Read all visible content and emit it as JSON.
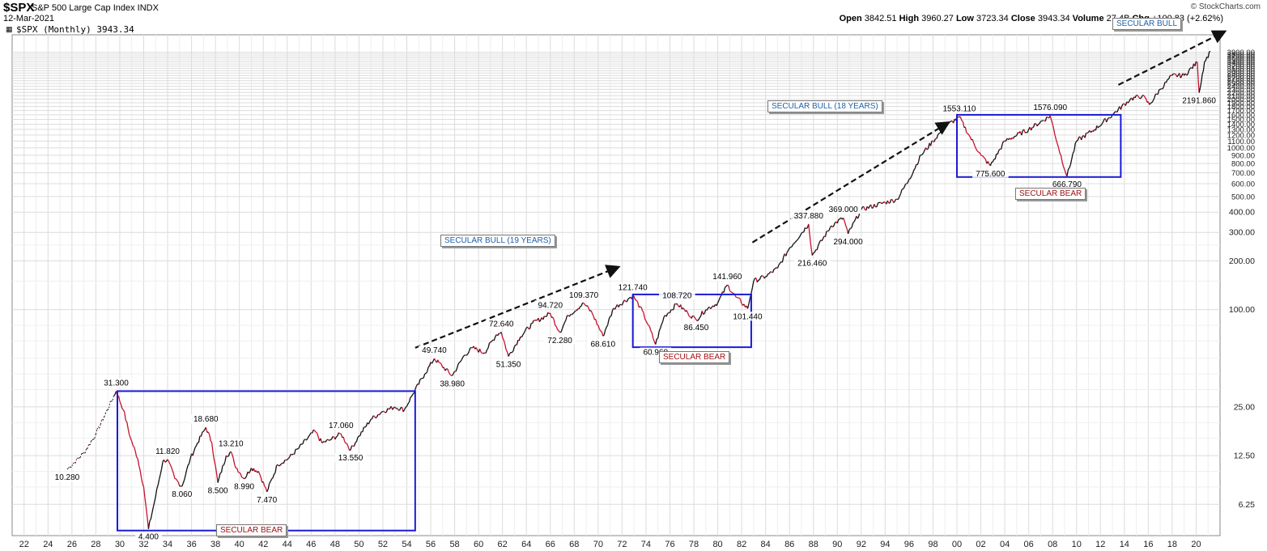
{
  "header": {
    "symbol": "$SPX",
    "name": "S&P 500 Large Cap Index INDX",
    "date": "12-Mar-2021",
    "legend": "$SPX (Monthly) 3943.34",
    "brand": "© StockCharts.com",
    "ohlc": [
      {
        "label": "Open",
        "value": "3842.51"
      },
      {
        "label": "High",
        "value": "3960.27"
      },
      {
        "label": "Low",
        "value": "3723.34"
      },
      {
        "label": "Close",
        "value": "3943.34"
      },
      {
        "label": "Volume",
        "value": "27.4B"
      },
      {
        "label": "Chg",
        "value": "+100.83 (+2.62%)"
      }
    ]
  },
  "chart_data": {
    "type": "line",
    "title": "$SPX (Monthly)",
    "y_scale": "log",
    "ylim": [
      4,
      5000
    ],
    "xlim": [
      1921,
      2022
    ],
    "grid": true,
    "y_ticks": [
      "6.25",
      "12.50",
      "25.00",
      "100.00",
      "200.00",
      "300.00",
      "400.00",
      "500.00",
      "600.00",
      "700.00",
      "800.00",
      "900.00",
      "1000.00",
      "1100.00",
      "1200.00",
      "1300.00",
      "1400.00",
      "1500.00",
      "1600.00",
      "1700.00",
      "1800.00",
      "1900.00",
      "2000.00",
      "2100.00",
      "2200.00",
      "2300.00",
      "2400.00",
      "2500.00",
      "2600.00",
      "2700.00",
      "2800.00",
      "2900.00",
      "3000.00",
      "3100.00",
      "3200.00",
      "3300.00",
      "3400.00",
      "3500.00",
      "3600.00",
      "3700.00",
      "3800.00",
      "3900.00"
    ],
    "x_ticks": [
      "22",
      "24",
      "26",
      "28",
      "30",
      "32",
      "34",
      "36",
      "38",
      "40",
      "42",
      "44",
      "46",
      "48",
      "50",
      "52",
      "54",
      "56",
      "58",
      "60",
      "62",
      "64",
      "66",
      "68",
      "70",
      "72",
      "74",
      "76",
      "78",
      "80",
      "82",
      "84",
      "86",
      "88",
      "90",
      "92",
      "94",
      "96",
      "98",
      "00",
      "02",
      "04",
      "06",
      "08",
      "10",
      "12",
      "14",
      "16",
      "18",
      "20"
    ],
    "series": [
      {
        "points": [
          [
            1925.6,
            10.28
          ],
          [
            1927,
            13
          ],
          [
            1928,
            17
          ],
          [
            1929.7,
            31.3
          ],
          [
            1930.3,
            24
          ],
          [
            1930.9,
            16
          ],
          [
            1931.5,
            12
          ],
          [
            1932.0,
            8
          ],
          [
            1932.4,
            4.4
          ],
          [
            1933.0,
            7
          ],
          [
            1933.6,
            11.5
          ],
          [
            1934.0,
            11.82
          ],
          [
            1934.6,
            9
          ],
          [
            1935.2,
            8.06
          ],
          [
            1935.9,
            12
          ],
          [
            1936.5,
            15
          ],
          [
            1937.2,
            18.68
          ],
          [
            1937.7,
            15
          ],
          [
            1938.2,
            8.5
          ],
          [
            1938.9,
            12.5
          ],
          [
            1939.3,
            13.21
          ],
          [
            1939.6,
            11
          ],
          [
            1940.4,
            8.99
          ],
          [
            1941.0,
            10.5
          ],
          [
            1941.6,
            10
          ],
          [
            1942.3,
            7.47
          ],
          [
            1943.2,
            11
          ],
          [
            1944.1,
            12
          ],
          [
            1945.0,
            14
          ],
          [
            1946.3,
            17.8
          ],
          [
            1946.9,
            15
          ],
          [
            1947.5,
            15.5
          ],
          [
            1948.5,
            17.06
          ],
          [
            1949.3,
            13.55
          ],
          [
            1950.0,
            16.5
          ],
          [
            1951.0,
            21
          ],
          [
            1952.0,
            23.5
          ],
          [
            1953.0,
            25
          ],
          [
            1953.8,
            24
          ],
          [
            1954.5,
            30
          ],
          [
            1955.5,
            40
          ],
          [
            1956.3,
            49.74
          ],
          [
            1957.8,
            38.98
          ],
          [
            1958.8,
            52
          ],
          [
            1959.5,
            58
          ],
          [
            1960.5,
            54
          ],
          [
            1961.5,
            70
          ],
          [
            1961.9,
            72.64
          ],
          [
            1962.5,
            51.35
          ],
          [
            1963.5,
            68
          ],
          [
            1964.5,
            82
          ],
          [
            1966.0,
            94.72
          ],
          [
            1966.8,
            72.28
          ],
          [
            1967.5,
            92
          ],
          [
            1968.8,
            109.37
          ],
          [
            1969.5,
            95
          ],
          [
            1970.4,
            68.61
          ],
          [
            1971.3,
            102
          ],
          [
            1972.9,
            121.74
          ],
          [
            1973.5,
            104
          ],
          [
            1974.2,
            80
          ],
          [
            1974.8,
            60.96
          ],
          [
            1975.5,
            90
          ],
          [
            1976.6,
            108.72
          ],
          [
            1977.5,
            95
          ],
          [
            1978.2,
            86.45
          ],
          [
            1979.0,
            100
          ],
          [
            1980.0,
            110
          ],
          [
            1980.8,
            141.96
          ],
          [
            1981.5,
            120
          ],
          [
            1982.5,
            101.44
          ],
          [
            1983.0,
            150
          ],
          [
            1984.0,
            160
          ],
          [
            1985.0,
            180
          ],
          [
            1986.0,
            240
          ],
          [
            1987.6,
            337.88
          ],
          [
            1987.9,
            216.46
          ],
          [
            1989.5,
            330
          ],
          [
            1990.5,
            369
          ],
          [
            1990.9,
            294
          ],
          [
            1992.0,
            415
          ],
          [
            1994.0,
            460
          ],
          [
            1995.0,
            480
          ],
          [
            1996.0,
            640
          ],
          [
            1997.0,
            900
          ],
          [
            1998.0,
            1100
          ],
          [
            1999.0,
            1350
          ],
          [
            2000.2,
            1553.11
          ],
          [
            2001.0,
            1200
          ],
          [
            2002.0,
            900
          ],
          [
            2002.8,
            775.6
          ],
          [
            2004.0,
            1100
          ],
          [
            2006.0,
            1300
          ],
          [
            2007.8,
            1576.09
          ],
          [
            2008.5,
            1000
          ],
          [
            2009.2,
            666.79
          ],
          [
            2010.0,
            1100
          ],
          [
            2011.5,
            1300
          ],
          [
            2013.0,
            1600
          ],
          [
            2014.5,
            2000
          ],
          [
            2015.5,
            2100
          ],
          [
            2016.1,
            1850
          ],
          [
            2017.0,
            2300
          ],
          [
            2018.0,
            2800
          ],
          [
            2019.0,
            2800
          ],
          [
            2020.1,
            3380
          ],
          [
            2020.25,
            2191.86
          ],
          [
            2020.7,
            3400
          ],
          [
            2021.2,
            3943.34
          ]
        ]
      }
    ],
    "annotations": [
      {
        "x": 1925.6,
        "y": 10.28,
        "text": "10.280"
      },
      {
        "x": 1929.7,
        "y": 31.3,
        "text": "31.300"
      },
      {
        "x": 1932.4,
        "y": 4.4,
        "text": "4.400"
      },
      {
        "x": 1934.0,
        "y": 11.82,
        "text": "11.820"
      },
      {
        "x": 1935.2,
        "y": 8.06,
        "text": "8.060"
      },
      {
        "x": 1937.2,
        "y": 18.68,
        "text": "18.680"
      },
      {
        "x": 1938.2,
        "y": 8.5,
        "text": "8.500"
      },
      {
        "x": 1939.3,
        "y": 13.21,
        "text": "13.210"
      },
      {
        "x": 1940.4,
        "y": 8.99,
        "text": "8.990"
      },
      {
        "x": 1942.3,
        "y": 7.47,
        "text": "7.470"
      },
      {
        "x": 1948.5,
        "y": 17.06,
        "text": "17.060"
      },
      {
        "x": 1949.3,
        "y": 13.55,
        "text": "13.550"
      },
      {
        "x": 1956.3,
        "y": 49.74,
        "text": "49.740"
      },
      {
        "x": 1957.8,
        "y": 38.98,
        "text": "38.980"
      },
      {
        "x": 1961.9,
        "y": 72.64,
        "text": "72.640"
      },
      {
        "x": 1962.5,
        "y": 51.35,
        "text": "51.350"
      },
      {
        "x": 1966.0,
        "y": 94.72,
        "text": "94.720"
      },
      {
        "x": 1966.8,
        "y": 72.28,
        "text": "72.280"
      },
      {
        "x": 1968.8,
        "y": 109.37,
        "text": "109.370"
      },
      {
        "x": 1970.4,
        "y": 68.61,
        "text": "68.610"
      },
      {
        "x": 1972.9,
        "y": 121.74,
        "text": "121.740"
      },
      {
        "x": 1974.8,
        "y": 60.96,
        "text": "60.960"
      },
      {
        "x": 1976.6,
        "y": 108.72,
        "text": "108.720"
      },
      {
        "x": 1978.2,
        "y": 86.45,
        "text": "86.450"
      },
      {
        "x": 1980.8,
        "y": 141.96,
        "text": "141.960"
      },
      {
        "x": 1982.5,
        "y": 101.44,
        "text": "101.440"
      },
      {
        "x": 1987.6,
        "y": 337.88,
        "text": "337.880"
      },
      {
        "x": 1987.9,
        "y": 216.46,
        "text": "216.460"
      },
      {
        "x": 1990.5,
        "y": 369,
        "text": "369.000"
      },
      {
        "x": 1990.9,
        "y": 294,
        "text": "294.000"
      },
      {
        "x": 2000.2,
        "y": 1553.11,
        "text": "1553.110"
      },
      {
        "x": 2002.8,
        "y": 775.6,
        "text": "775.600"
      },
      {
        "x": 2007.8,
        "y": 1576.09,
        "text": "1576.090"
      },
      {
        "x": 2009.2,
        "y": 666.79,
        "text": "666.790"
      },
      {
        "x": 2020.25,
        "y": 2191.86,
        "text": "2191.860"
      }
    ],
    "regions": [
      {
        "x0": 1929.8,
        "x1": 1954.7,
        "y0": 4.3,
        "y1": 31.3,
        "label": "SECULAR BEAR",
        "kind": "bear"
      },
      {
        "x0": 1972.9,
        "x1": 1982.8,
        "y0": 58.5,
        "y1": 124,
        "label": "SECULAR BEAR",
        "kind": "bear"
      },
      {
        "x0": 2000.0,
        "x1": 2013.7,
        "y0": 660,
        "y1": 1600,
        "label": "SECULAR BEAR",
        "kind": "bear"
      }
    ],
    "trend_arrows": [
      {
        "x0": 1954.7,
        "y0": 58,
        "x1": 1971.6,
        "y1": 182,
        "label": "SECULAR BULL (19 YEARS)"
      },
      {
        "x0": 1982.9,
        "y0": 260,
        "x1": 1999.2,
        "y1": 1420,
        "label": "SECULAR BULL (18 YEARS)"
      },
      {
        "x0": 2013.5,
        "y0": 2450,
        "x1": 2022.3,
        "y1": 5200,
        "label": "SECULAR BULL"
      }
    ]
  }
}
